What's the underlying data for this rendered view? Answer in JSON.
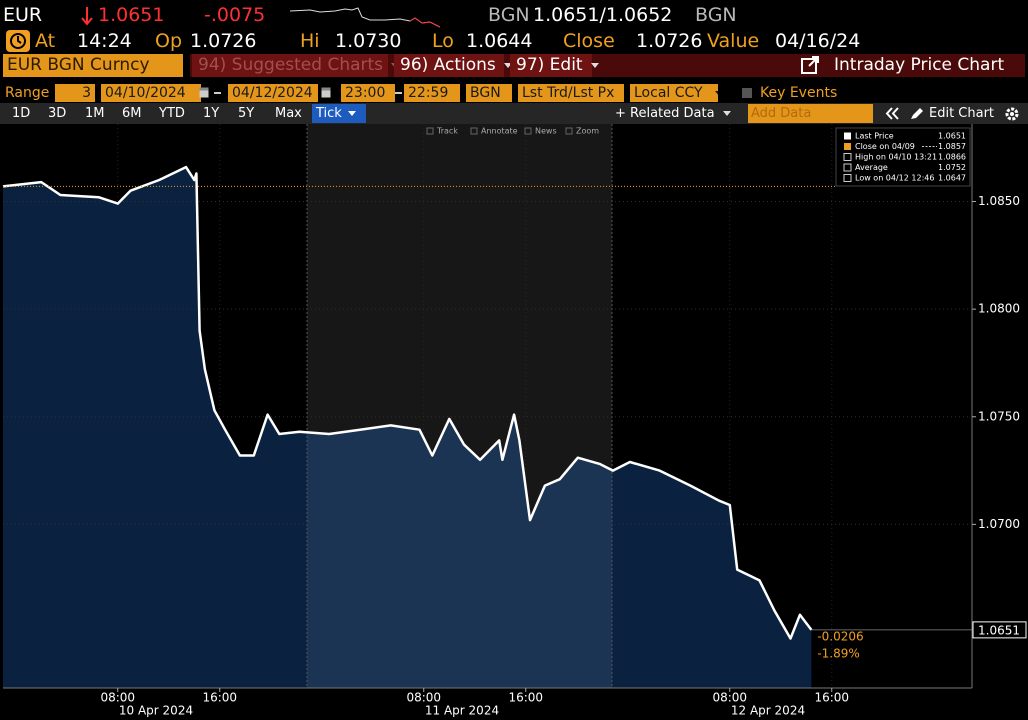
{
  "header": {
    "ticker": "EUR",
    "last": "1.0651",
    "change": "-.0075",
    "ccy_left": "BGN",
    "bid_ask": "1.0651/1.0652",
    "ccy_right": "BGN",
    "stats": [
      {
        "label": "At",
        "value": "14:24"
      },
      {
        "label": "Op",
        "value": "1.0726"
      },
      {
        "label": "Hi",
        "value": "1.0730"
      },
      {
        "label": "Lo",
        "value": "1.0644"
      },
      {
        "label": "Close",
        "value": "1.0726"
      },
      {
        "label": "Value",
        "value": "04/16/24"
      }
    ]
  },
  "toolbar": {
    "security": "EUR BGN Curncy",
    "menus": [
      "94) Suggested Charts",
      "96) Actions",
      "97) Edit"
    ],
    "chart_title": "Intraday Price Chart"
  },
  "controls": {
    "range_label": "Range",
    "range_value": "3",
    "start_date": "04/10/2024",
    "end_date": "04/12/2024",
    "start_time": "23:00",
    "end_time": "22:59",
    "currency": "BGN",
    "price_field": "Lst Trd/Lst Px",
    "ccy_mode": "Local CCY",
    "key_events": "Key Events",
    "periods": [
      "1D",
      "3D",
      "1M",
      "6M",
      "YTD",
      "1Y",
      "5Y",
      "Max"
    ],
    "interval": "Tick",
    "related_data": "+ Related Data",
    "add_data": "Add Data",
    "edit_chart": "Edit Chart"
  },
  "chart_tools": [
    "Track",
    "Annotate",
    "News",
    "Zoom"
  ],
  "chart_data": {
    "type": "line",
    "x": [
      "2024-04-09T23:00",
      "2024-04-10T02:00",
      "2024-04-10T03:30",
      "2024-04-10T06:30",
      "2024-04-10T08:00",
      "2024-04-10T09:00",
      "2024-04-10T11:15",
      "2024-04-10T13:21",
      "2024-04-10T14:00",
      "2024-04-10T14:10",
      "2024-04-10T14:25",
      "2024-04-10T14:50",
      "2024-04-10T15:35",
      "2024-04-10T16:25",
      "2024-04-10T17:35",
      "2024-04-10T18:40",
      "2024-04-10T19:45",
      "2024-04-10T20:40",
      "2024-04-10T22:15",
      "2024-04-11T00:35",
      "2024-04-11T03:00",
      "2024-04-11T05:25",
      "2024-04-11T07:40",
      "2024-04-11T08:40",
      "2024-04-11T10:00",
      "2024-04-11T11:10",
      "2024-04-11T12:25",
      "2024-04-11T13:55",
      "2024-04-11T14:10",
      "2024-04-11T15:05",
      "2024-04-11T15:30",
      "2024-04-11T16:20",
      "2024-04-11T17:30",
      "2024-04-11T18:40",
      "2024-04-11T20:05",
      "2024-04-11T21:50",
      "2024-04-11T22:50",
      "2024-04-12T00:10",
      "2024-04-12T02:30",
      "2024-04-12T04:55",
      "2024-04-12T07:10",
      "2024-04-12T08:00",
      "2024-04-12T08:35",
      "2024-04-12T10:20",
      "2024-04-12T11:30",
      "2024-04-12T12:46",
      "2024-04-12T13:30",
      "2024-04-12T14:24"
    ],
    "series": [
      {
        "name": "Last Price",
        "color": "#ffffff",
        "values": [
          1.0857,
          1.0859,
          1.0853,
          1.0852,
          1.0849,
          1.0855,
          1.086,
          1.0866,
          1.086,
          1.0863,
          1.079,
          1.0772,
          1.0753,
          1.0744,
          1.0732,
          1.0732,
          1.0751,
          1.0742,
          1.0743,
          1.0742,
          1.0744,
          1.0746,
          1.0744,
          1.0732,
          1.0749,
          1.0737,
          1.073,
          1.0739,
          1.073,
          1.0751,
          1.0739,
          1.0702,
          1.0718,
          1.0721,
          1.0731,
          1.0728,
          1.0725,
          1.0729,
          1.0725,
          1.0718,
          1.0711,
          1.0709,
          1.0679,
          1.0674,
          1.066,
          1.0647,
          1.0658,
          1.0651
        ]
      }
    ],
    "legend_items": [
      {
        "label": "Close on 04/09",
        "value": 1.0857,
        "color": "#f0a020"
      },
      {
        "label": "High on 04/10 13:21",
        "value": 1.0866
      },
      {
        "label": "Average",
        "value": 1.0752
      },
      {
        "label": "Low on 04/12 12:46",
        "value": 1.0647
      }
    ],
    "annotations": [
      "-0.0206",
      "-1.89%"
    ],
    "xlim": [
      "2024-04-09T23:00",
      "2024-04-13T03:00"
    ],
    "xticks": [
      {
        "value": "2024-04-10T08:00",
        "label": "08:00"
      },
      {
        "value": "2024-04-10T16:00",
        "label": "16:00"
      },
      {
        "value": "2024-04-11T08:00",
        "label": "08:00"
      },
      {
        "value": "2024-04-11T16:00",
        "label": "16:00"
      },
      {
        "value": "2024-04-12T08:00",
        "label": "08:00"
      },
      {
        "value": "2024-04-12T16:00",
        "label": "16:00"
      }
    ],
    "xdates": [
      {
        "value": "2024-04-10T11:00",
        "label": "10 Apr 2024"
      },
      {
        "value": "2024-04-11T11:00",
        "label": "11 Apr 2024"
      },
      {
        "value": "2024-04-12T11:00",
        "label": "12 Apr 2024"
      }
    ],
    "ylim": [
      1.0624,
      1.0886
    ],
    "yticks": [
      {
        "value": 1.085,
        "label": "1.0850"
      },
      {
        "value": 1.08,
        "label": "1.0800"
      },
      {
        "value": 1.075,
        "label": "1.0750"
      },
      {
        "value": 1.07,
        "label": "1.0700"
      }
    ],
    "grid": true
  }
}
